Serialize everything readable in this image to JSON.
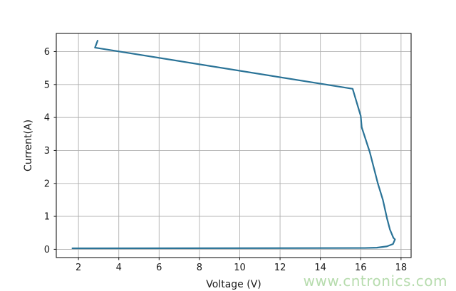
{
  "figure": {
    "background": "#ffffff",
    "watermark": {
      "text": "www.cntronics.com",
      "color": "#b7dcae"
    }
  },
  "chart_data": {
    "type": "line",
    "title": "",
    "xlabel": "Voltage (V)",
    "ylabel": "Current(A)",
    "xlim": [
      0.9,
      18.5
    ],
    "ylim": [
      -0.25,
      6.55
    ],
    "x_ticks": [
      2,
      4,
      6,
      8,
      10,
      12,
      14,
      16,
      18
    ],
    "y_ticks": [
      0,
      1,
      2,
      3,
      4,
      5,
      6
    ],
    "grid": true,
    "grid_color": "#b0b0b0",
    "spine_color": "#1a1a1a",
    "tick_label_color": "#1a1a1a",
    "legend": "none",
    "series": [
      {
        "name": "I-V curve",
        "color": "#2a7397",
        "line_width": 2.2,
        "points": [
          [
            2.95,
            6.33
          ],
          [
            2.82,
            6.12
          ],
          [
            15.6,
            4.87
          ],
          [
            16.0,
            4.05
          ],
          [
            16.05,
            3.7
          ],
          [
            16.45,
            2.95
          ],
          [
            16.85,
            2.0
          ],
          [
            17.1,
            1.5
          ],
          [
            17.3,
            0.95
          ],
          [
            17.45,
            0.6
          ],
          [
            17.62,
            0.35
          ],
          [
            17.7,
            0.3
          ],
          [
            17.6,
            0.16
          ],
          [
            17.3,
            0.09
          ],
          [
            16.8,
            0.05
          ],
          [
            16.2,
            0.04
          ],
          [
            1.7,
            0.03
          ]
        ]
      }
    ]
  }
}
